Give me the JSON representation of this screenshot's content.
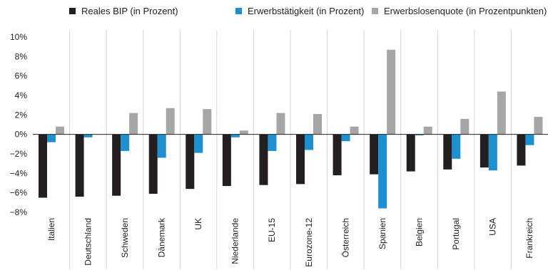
{
  "chart_data": {
    "type": "bar",
    "categories": [
      "Italien",
      "Deutschland",
      "Schweden",
      "Dänemark",
      "UK",
      "Niederlande",
      "EU-15",
      "Eurozone-12",
      "Österreich",
      "Spanien",
      "Belgien",
      "Portugal",
      "USA",
      "Frankreich"
    ],
    "series": [
      {
        "name": "Reales BIP (in Prozent)",
        "color": "#231f20",
        "values": [
          -6.5,
          -6.4,
          -6.3,
          -6.1,
          -5.6,
          -5.3,
          -5.2,
          -5.1,
          -4.2,
          -4.1,
          -3.8,
          -3.6,
          -3.4,
          -3.2
        ]
      },
      {
        "name": "Erwerbstätigkeit (in Prozent)",
        "color": "#1e90d0",
        "values": [
          -0.8,
          -0.3,
          -1.7,
          -2.4,
          -1.9,
          -0.3,
          -1.7,
          -1.6,
          -0.7,
          -7.6,
          -0.1,
          -2.5,
          -3.7,
          -1.1
        ]
      },
      {
        "name": "Erwerbslosenquote (in Prozentpunkten)",
        "color": "#a6a6a6",
        "values": [
          0.8,
          0.0,
          2.2,
          2.7,
          2.6,
          0.4,
          2.2,
          2.1,
          0.8,
          8.7,
          0.8,
          1.6,
          4.4,
          1.8
        ]
      }
    ],
    "yticks": [
      "10%",
      "8%",
      "6%",
      "4%",
      "2%",
      "0%",
      "−2%",
      "−4%",
      "−6%",
      "−8%"
    ],
    "ylim": [
      -8,
      10
    ],
    "legend": "top",
    "grid": false
  }
}
